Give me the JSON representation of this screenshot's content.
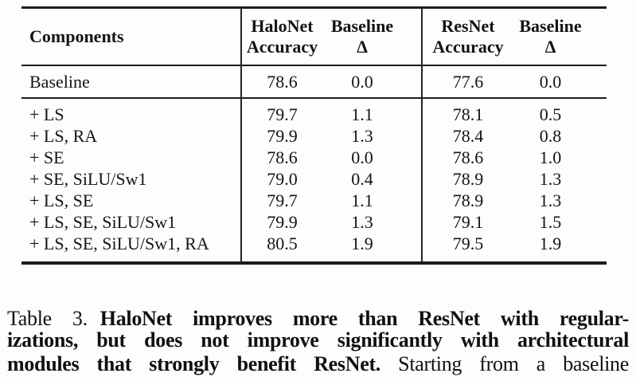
{
  "table": {
    "headers": {
      "components": "Components",
      "halonet_l1": "HaloNet",
      "halonet_l2": "Accuracy",
      "baseline_l1": "Baseline",
      "baseline_l2": "Δ",
      "resnet_l1": "ResNet",
      "resnet_l2": "Accuracy"
    },
    "rows": [
      {
        "components": "Baseline",
        "halonet_acc": "78.6",
        "halonet_delta": "0.0",
        "resnet_acc": "77.6",
        "resnet_delta": "0.0"
      },
      {
        "components": "+ LS",
        "halonet_acc": "79.7",
        "halonet_delta": "1.1",
        "resnet_acc": "78.1",
        "resnet_delta": "0.5"
      },
      {
        "components": "+ LS, RA",
        "halonet_acc": "79.9",
        "halonet_delta": "1.3",
        "resnet_acc": "78.4",
        "resnet_delta": "0.8"
      },
      {
        "components": "+ SE",
        "halonet_acc": "78.6",
        "halonet_delta": "0.0",
        "resnet_acc": "78.6",
        "resnet_delta": "1.0"
      },
      {
        "components": "+ SE, SiLU/Sw1",
        "halonet_acc": "79.0",
        "halonet_delta": "0.4",
        "resnet_acc": "78.9",
        "resnet_delta": "1.3"
      },
      {
        "components": "+ LS, SE",
        "halonet_acc": "79.7",
        "halonet_delta": "1.1",
        "resnet_acc": "78.9",
        "resnet_delta": "1.3"
      },
      {
        "components": "+ LS, SE, SiLU/Sw1",
        "halonet_acc": "79.9",
        "halonet_delta": "1.3",
        "resnet_acc": "79.1",
        "resnet_delta": "1.5"
      },
      {
        "components": "+ LS, SE, SiLU/Sw1, RA",
        "halonet_acc": "80.5",
        "halonet_delta": "1.9",
        "resnet_acc": "79.5",
        "resnet_delta": "1.9"
      }
    ]
  },
  "caption": {
    "label": "Table 3.",
    "bold_line1": "HaloNet improves more than ResNet with regular-",
    "bold_line2": "izations, but does not improve significantly with architectural",
    "bold_line3": "modules that strongly benefit ResNet.",
    "normal_tail": "Starting from a baseline"
  },
  "colors": {
    "background": "#fdfdfd",
    "text": "#141414",
    "rule": "#1c1c1c"
  }
}
